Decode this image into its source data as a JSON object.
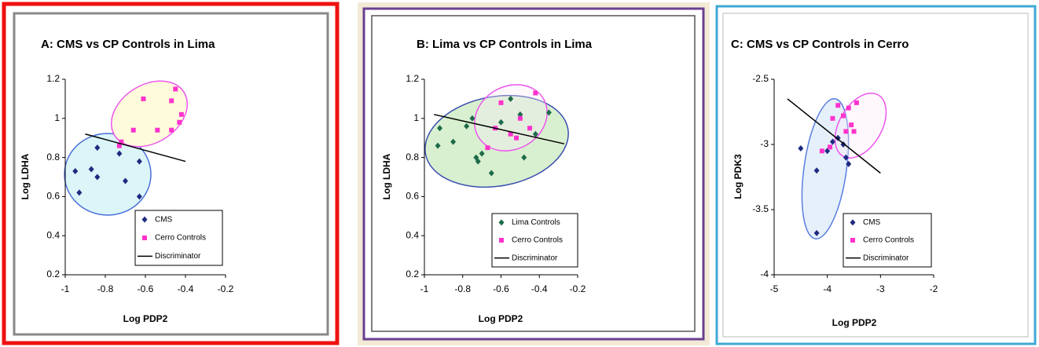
{
  "chart_data": [
    {
      "type": "scatter",
      "title": "A: CMS vs CP Controls in Lima",
      "x_label": "Log PDP2",
      "y_label": "Log LDHA",
      "xlim": [
        -1,
        -0.2
      ],
      "ylim": [
        0.2,
        1.2
      ],
      "xticks": [
        -1,
        -0.8,
        -0.6,
        -0.4,
        -0.2
      ],
      "yticks": [
        0.2,
        0.4,
        0.6,
        0.8,
        1,
        1.2
      ],
      "legend": "lower right",
      "series": [
        {
          "name": "CMS",
          "color": "#1f2a80",
          "marker": "diamond",
          "x": [
            -0.95,
            -0.93,
            -0.87,
            -0.84,
            -0.84,
            -0.73,
            -0.7,
            -0.63,
            -0.63
          ],
          "y": [
            0.73,
            0.62,
            0.74,
            0.85,
            0.7,
            0.82,
            0.68,
            0.78,
            0.6
          ]
        },
        {
          "name": "Cerro Controls",
          "color": "#ff33cc",
          "marker": "square",
          "x": [
            -0.73,
            -0.72,
            -0.66,
            -0.61,
            -0.54,
            -0.47,
            -0.47,
            -0.45,
            -0.43,
            -0.42
          ],
          "y": [
            0.86,
            0.88,
            0.94,
            1.1,
            0.94,
            1.09,
            0.94,
            1.15,
            0.98,
            1.02
          ]
        },
        {
          "name": "Discriminator",
          "color": "#000000",
          "marker": "line",
          "x": [
            -0.9,
            -0.4
          ],
          "y": [
            0.92,
            0.78
          ]
        }
      ]
    },
    {
      "type": "scatter",
      "title": "B: Lima vs CP Controls in Lima",
      "x_label": "Log PDP2",
      "y_label": "Log LDHA",
      "xlim": [
        -1,
        -0.2
      ],
      "ylim": [
        0.2,
        1.2
      ],
      "xticks": [
        -1,
        -0.8,
        -0.6,
        -0.4,
        -0.2
      ],
      "yticks": [
        0.2,
        0.4,
        0.6,
        0.8,
        1,
        1.2
      ],
      "legend": "lower right",
      "series": [
        {
          "name": "Lima Controls",
          "color": "#1d6b4a",
          "marker": "diamond",
          "x": [
            -0.93,
            -0.92,
            -0.85,
            -0.78,
            -0.75,
            -0.73,
            -0.72,
            -0.7,
            -0.65,
            -0.6,
            -0.55,
            -0.5,
            -0.48,
            -0.42,
            -0.35
          ],
          "y": [
            0.86,
            0.95,
            0.88,
            0.96,
            1.0,
            0.8,
            0.78,
            0.82,
            0.72,
            0.98,
            1.1,
            1.02,
            0.8,
            0.92,
            1.03
          ]
        },
        {
          "name": "Cerro Controls",
          "color": "#ff33cc",
          "marker": "square",
          "x": [
            -0.67,
            -0.63,
            -0.6,
            -0.55,
            -0.52,
            -0.5,
            -0.45,
            -0.42
          ],
          "y": [
            0.85,
            0.95,
            1.08,
            0.92,
            0.9,
            1.0,
            0.95,
            1.13
          ]
        },
        {
          "name": "Discriminator",
          "color": "#000000",
          "marker": "line",
          "x": [
            -0.95,
            -0.27
          ],
          "y": [
            1.02,
            0.87
          ]
        }
      ]
    },
    {
      "type": "scatter",
      "title": "C: CMS vs CP Controls in Cerro",
      "x_label": "Log PDP2",
      "y_label": "Log PDK3",
      "xlim": [
        -5,
        -2
      ],
      "ylim": [
        -4,
        -2.5
      ],
      "xticks": [
        -5,
        -4,
        -3,
        -2
      ],
      "yticks": [
        -4,
        -3.5,
        -3,
        -2.5
      ],
      "legend": "lower right",
      "series": [
        {
          "name": "CMS",
          "color": "#1f2a80",
          "marker": "diamond",
          "x": [
            -4.5,
            -4.2,
            -4.2,
            -4.0,
            -3.9,
            -3.8,
            -3.7,
            -3.65,
            -3.6
          ],
          "y": [
            -3.03,
            -3.2,
            -3.68,
            -3.05,
            -2.98,
            -2.95,
            -3.0,
            -3.1,
            -3.15
          ]
        },
        {
          "name": "Cerro Controls",
          "color": "#ff33cc",
          "marker": "square",
          "x": [
            -4.1,
            -3.95,
            -3.9,
            -3.8,
            -3.7,
            -3.65,
            -3.6,
            -3.55,
            -3.5,
            -3.45
          ],
          "y": [
            -3.05,
            -3.02,
            -2.8,
            -2.7,
            -2.78,
            -2.9,
            -2.72,
            -2.85,
            -2.9,
            -2.68
          ]
        },
        {
          "name": "Discriminator",
          "color": "#000000",
          "marker": "line",
          "x": [
            -4.75,
            -3.0
          ],
          "y": [
            -2.65,
            -3.22
          ]
        }
      ]
    }
  ]
}
